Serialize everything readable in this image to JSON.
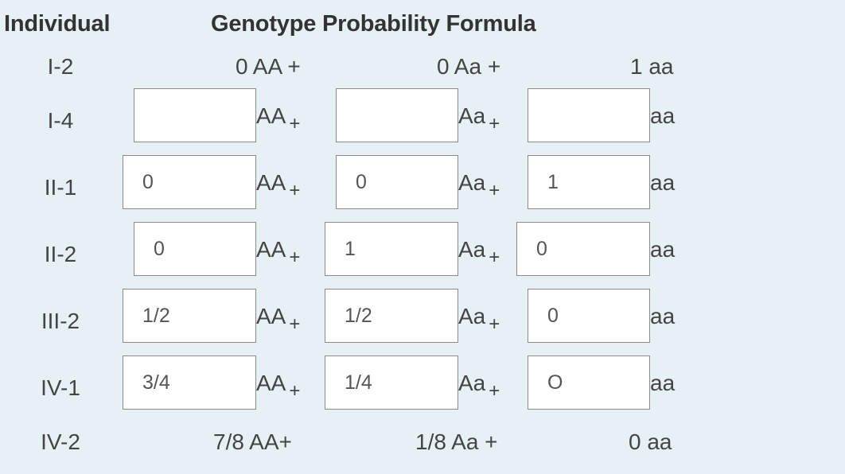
{
  "headers": {
    "individual": "Individual",
    "formula": "Genotype Probability Formula"
  },
  "units": {
    "AA": "AA",
    "Aa": "Aa",
    "aa": "aa",
    "plus": "+"
  },
  "rows": [
    {
      "id": "I-2",
      "label": "I-2",
      "static": {
        "AA": "0 AA +",
        "Aa": "0 Aa +",
        "aa": "1 aa"
      }
    },
    {
      "id": "I-4",
      "label": "I-4",
      "inputs": {
        "AA": "",
        "Aa": "",
        "aa": ""
      }
    },
    {
      "id": "II-1",
      "label": "II-1",
      "inputs": {
        "AA": "0",
        "Aa": "0",
        "aa": "1"
      }
    },
    {
      "id": "II-2",
      "label": "II-2",
      "inputs": {
        "AA": "0",
        "Aa": "1",
        "aa": "0"
      }
    },
    {
      "id": "III-2",
      "label": "III-2",
      "inputs": {
        "AA": "1/2",
        "Aa": "1/2",
        "aa": "0"
      }
    },
    {
      "id": "IV-1",
      "label": "IV-1",
      "inputs": {
        "AA": "3/4",
        "Aa": "1/4",
        "aa": "O"
      }
    },
    {
      "id": "IV-2",
      "label": "IV-2",
      "static": {
        "AA": "7/8 AA+",
        "Aa": "1/8 Aa +",
        "aa": "0 aa"
      }
    }
  ]
}
